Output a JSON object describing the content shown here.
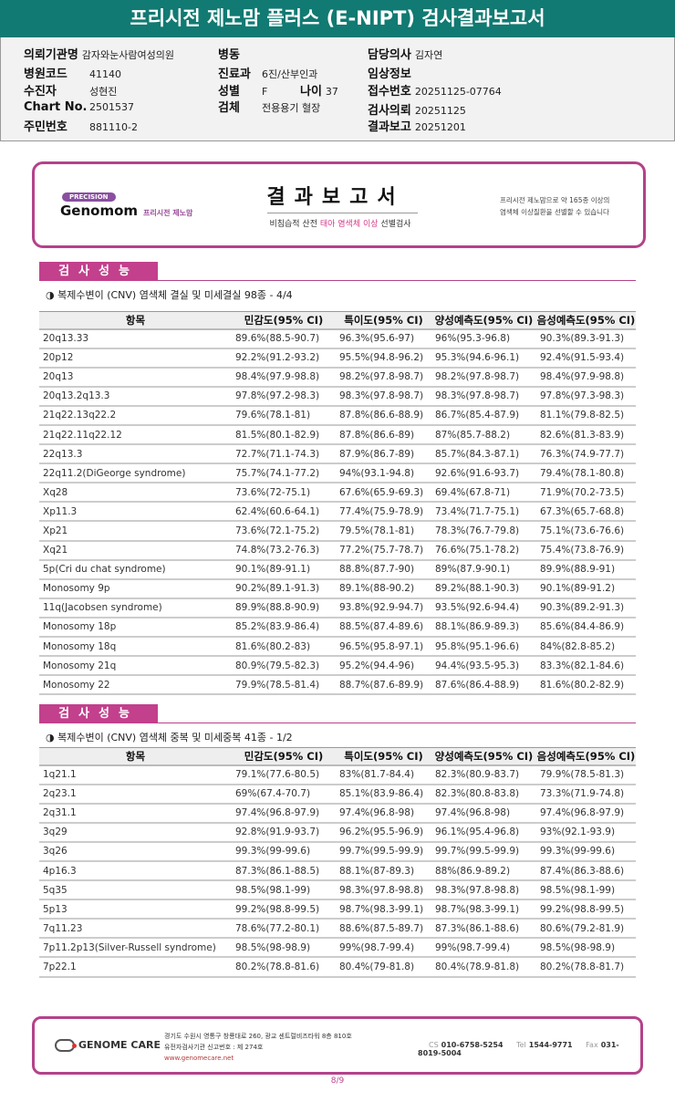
{
  "title": "프리시전 제노맘 플러스 (E-NIPT) 검사결과보고서",
  "info": {
    "institution": {
      "label": "의뢰기관명",
      "value": "감자와눈사람여성의원"
    },
    "hospital_code": {
      "label": "병원코드",
      "value": "41140"
    },
    "patient": {
      "label": "수진자",
      "value": "성현진"
    },
    "chart_no": {
      "label": "Chart No.",
      "value": "2501537"
    },
    "resident_no": {
      "label": "주민번호",
      "value": "881110-2"
    },
    "ward": {
      "label": "병동",
      "value": ""
    },
    "department": {
      "label": "진료과",
      "value": "6진/산부인과"
    },
    "sex": {
      "label": "성별",
      "value": "F"
    },
    "age": {
      "label": "나이",
      "value": "37"
    },
    "specimen": {
      "label": "검체",
      "value": "전용용기 혈장"
    },
    "doctor": {
      "label": "담당의사",
      "value": "김자연"
    },
    "clinical": {
      "label": "임상정보",
      "value": ""
    },
    "receipt_no": {
      "label": "접수번호",
      "value": "20251125-07764"
    },
    "request_date": {
      "label": "검사의뢰",
      "value": "20251125"
    },
    "report_date": {
      "label": "결과보고",
      "value": "20251201"
    }
  },
  "report": {
    "precision": "PRECISION",
    "brand": "Genomom",
    "brand_sub": "프리시전 제노맘",
    "title": "결과보고서",
    "sub_pre": "비침습적 산전 ",
    "sub_pink": "태아 염색체 이상",
    "sub_post": " 선별검사",
    "right1": "프리시전 제노맘으로 약 165종 이상의",
    "right2": "염색체 이상질환을 선별할 수 있습니다"
  },
  "sections": [
    {
      "label": "검사성능",
      "subtitle": "◑ 복제수변이 (CNV) 염색체 결실 및 미세결실 98종 - 4/4",
      "headers": [
        "항목",
        "민감도(95% CI)",
        "특이도(95% CI)",
        "양성예측도(95% CI)",
        "음성예측도(95% CI)"
      ],
      "rows": [
        [
          "20q13.33",
          "89.6%(88.5-90.7)",
          "96.3%(95.6-97)",
          "96%(95.3-96.8)",
          "90.3%(89.3-91.3)"
        ],
        [
          "20p12",
          "92.2%(91.2-93.2)",
          "95.5%(94.8-96.2)",
          "95.3%(94.6-96.1)",
          "92.4%(91.5-93.4)"
        ],
        [
          "20q13",
          "98.4%(97.9-98.8)",
          "98.2%(97.8-98.7)",
          "98.2%(97.8-98.7)",
          "98.4%(97.9-98.8)"
        ],
        [
          "20q13.2q13.3",
          "97.8%(97.2-98.3)",
          "98.3%(97.8-98.7)",
          "98.3%(97.8-98.7)",
          "97.8%(97.3-98.3)"
        ],
        [
          "21q22.13q22.2",
          "79.6%(78.1-81)",
          "87.8%(86.6-88.9)",
          "86.7%(85.4-87.9)",
          "81.1%(79.8-82.5)"
        ],
        [
          "21q22.11q22.12",
          "81.5%(80.1-82.9)",
          "87.8%(86.6-89)",
          "87%(85.7-88.2)",
          "82.6%(81.3-83.9)"
        ],
        [
          "22q13.3",
          "72.7%(71.1-74.3)",
          "87.9%(86.7-89)",
          "85.7%(84.3-87.1)",
          "76.3%(74.9-77.7)"
        ],
        [
          "22q11.2(DiGeorge syndrome)",
          "75.7%(74.1-77.2)",
          "94%(93.1-94.8)",
          "92.6%(91.6-93.7)",
          "79.4%(78.1-80.8)"
        ],
        [
          "Xq28",
          "73.6%(72-75.1)",
          "67.6%(65.9-69.3)",
          "69.4%(67.8-71)",
          "71.9%(70.2-73.5)"
        ],
        [
          "Xp11.3",
          "62.4%(60.6-64.1)",
          "77.4%(75.9-78.9)",
          "73.4%(71.7-75.1)",
          "67.3%(65.7-68.8)"
        ],
        [
          "Xp21",
          "73.6%(72.1-75.2)",
          "79.5%(78.1-81)",
          "78.3%(76.7-79.8)",
          "75.1%(73.6-76.6)"
        ],
        [
          "Xq21",
          "74.8%(73.2-76.3)",
          "77.2%(75.7-78.7)",
          "76.6%(75.1-78.2)",
          "75.4%(73.8-76.9)"
        ],
        [
          "5p(Cri du chat syndrome)",
          "90.1%(89-91.1)",
          "88.8%(87.7-90)",
          "89%(87.9-90.1)",
          "89.9%(88.9-91)"
        ],
        [
          "Monosomy 9p",
          "90.2%(89.1-91.3)",
          "89.1%(88-90.2)",
          "89.2%(88.1-90.3)",
          "90.1%(89-91.2)"
        ],
        [
          "11q(Jacobsen syndrome)",
          "89.9%(88.8-90.9)",
          "93.8%(92.9-94.7)",
          "93.5%(92.6-94.4)",
          "90.3%(89.2-91.3)"
        ],
        [
          "Monosomy 18p",
          "85.2%(83.9-86.4)",
          "88.5%(87.4-89.6)",
          "88.1%(86.9-89.3)",
          "85.6%(84.4-86.9)"
        ],
        [
          "Monosomy 18q",
          "81.6%(80.2-83)",
          "96.5%(95.8-97.1)",
          "95.8%(95.1-96.6)",
          "84%(82.8-85.2)"
        ],
        [
          "Monosomy 21q",
          "80.9%(79.5-82.3)",
          "95.2%(94.4-96)",
          "94.4%(93.5-95.3)",
          "83.3%(82.1-84.6)"
        ],
        [
          "Monosomy 22",
          "79.9%(78.5-81.4)",
          "88.7%(87.6-89.9)",
          "87.6%(86.4-88.9)",
          "81.6%(80.2-82.9)"
        ]
      ]
    },
    {
      "label": "검사성능",
      "subtitle": "◑ 복제수변이 (CNV) 염색체 중복 및 미세중복 41종 - 1/2",
      "headers": [
        "항목",
        "민감도(95% CI)",
        "특이도(95% CI)",
        "양성예측도(95% CI)",
        "음성예측도(95% CI)"
      ],
      "rows": [
        [
          "1q21.1",
          "79.1%(77.6-80.5)",
          "83%(81.7-84.4)",
          "82.3%(80.9-83.7)",
          "79.9%(78.5-81.3)"
        ],
        [
          "2q23.1",
          "69%(67.4-70.7)",
          "85.1%(83.9-86.4)",
          "82.3%(80.8-83.8)",
          "73.3%(71.9-74.8)"
        ],
        [
          "2q31.1",
          "97.4%(96.8-97.9)",
          "97.4%(96.8-98)",
          "97.4%(96.8-98)",
          "97.4%(96.8-97.9)"
        ],
        [
          "3q29",
          "92.8%(91.9-93.7)",
          "96.2%(95.5-96.9)",
          "96.1%(95.4-96.8)",
          "93%(92.1-93.9)"
        ],
        [
          "3q26",
          "99.3%(99-99.6)",
          "99.7%(99.5-99.9)",
          "99.7%(99.5-99.9)",
          "99.3%(99-99.6)"
        ],
        [
          "4p16.3",
          "87.3%(86.1-88.5)",
          "88.1%(87-89.3)",
          "88%(86.9-89.2)",
          "87.4%(86.3-88.6)"
        ],
        [
          "5q35",
          "98.5%(98.1-99)",
          "98.3%(97.8-98.8)",
          "98.3%(97.8-98.8)",
          "98.5%(98.1-99)"
        ],
        [
          "5p13",
          "99.2%(98.8-99.5)",
          "98.7%(98.3-99.1)",
          "98.7%(98.3-99.1)",
          "99.2%(98.8-99.5)"
        ],
        [
          "7q11.23",
          "78.6%(77.2-80.1)",
          "88.6%(87.5-89.7)",
          "87.3%(86.1-88.6)",
          "80.6%(79.2-81.9)"
        ],
        [
          "7p11.2p13(Silver-Russell syndrome)",
          "98.5%(98-98.9)",
          "99%(98.7-99.4)",
          "99%(98.7-99.4)",
          "98.5%(98-98.9)"
        ],
        [
          "7p22.1",
          "80.2%(78.8-81.6)",
          "80.4%(79-81.8)",
          "80.4%(78.9-81.8)",
          "80.2%(78.8-81.7)"
        ]
      ]
    }
  ],
  "footer": {
    "brand": "GENOME CARE",
    "address": "경기도 수원시 영통구 창룡대로 260, 광교 센트럴비즈타워 8층 810호",
    "license": "유전자검사기관 신고번호 : 제 274호",
    "website": "www.genomecare.net",
    "cs_label": "CS",
    "cs": "010-6758-5254",
    "tel_label": "Tel",
    "tel": "1544-9771",
    "fax_label": "Fax",
    "fax": "031-8019-5004"
  },
  "page": "8/9",
  "colors": {
    "header_bar": "#117a72",
    "accent": "#c2408c"
  }
}
